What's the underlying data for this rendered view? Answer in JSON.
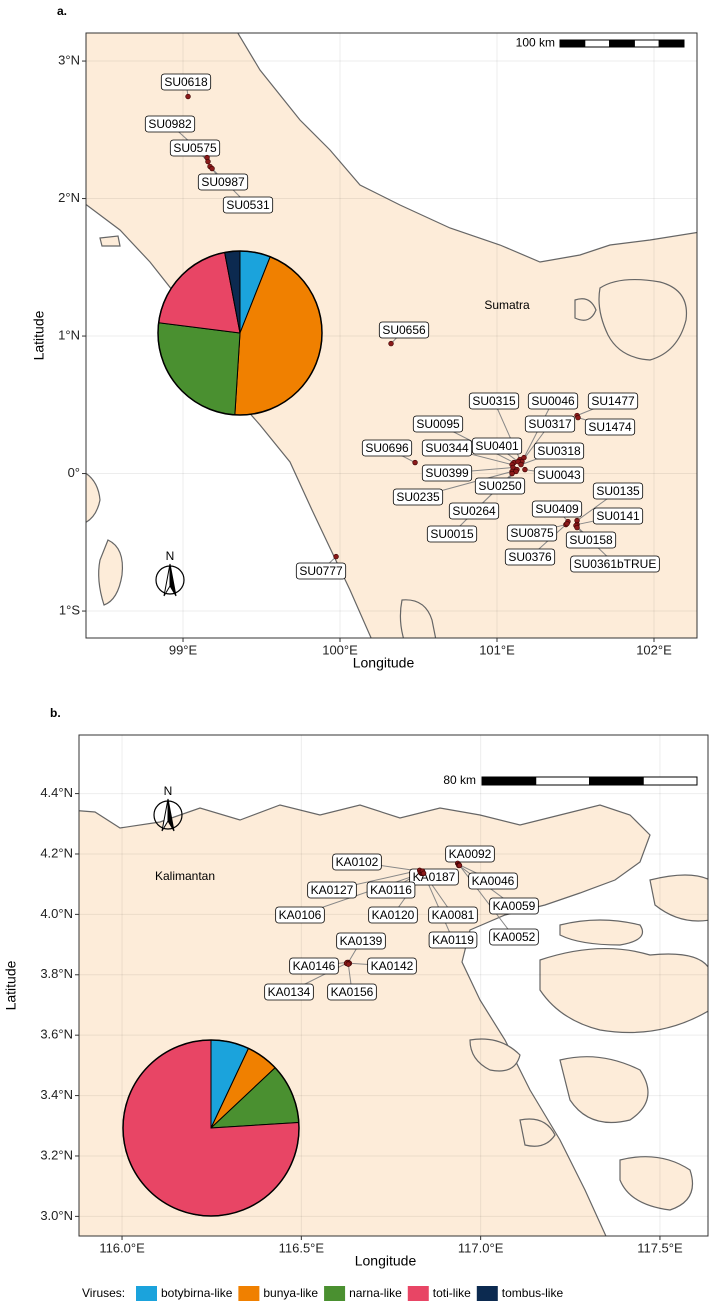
{
  "panels": [
    {
      "tag": "a.",
      "region": "Sumatra",
      "xlabel": "Longitude",
      "ylabel": "Latitude",
      "scale": "100 km",
      "north": "N",
      "xlim": [
        98.382,
        102.274
      ],
      "ylim": [
        -1.196,
        3.204
      ],
      "xticks": [
        {
          "value": 99,
          "label": "99°E"
        },
        {
          "value": 100,
          "label": "100°E"
        },
        {
          "value": 101,
          "label": "101°E"
        },
        {
          "value": 102,
          "label": "102°E"
        }
      ],
      "yticks": [
        {
          "value": 3,
          "label": "3°N"
        },
        {
          "value": 2,
          "label": "2°N"
        },
        {
          "value": 1,
          "label": "1°N"
        },
        {
          "value": 0,
          "label": "0°"
        },
        {
          "value": -1,
          "label": "1°S"
        }
      ],
      "samples": [
        {
          "label": "SU0618",
          "lon": 99.032,
          "lat": 2.742
        },
        {
          "label": "SU0982",
          "lon": 99.153,
          "lat": 2.298
        },
        {
          "label": "SU0575",
          "lon": 99.159,
          "lat": 2.269
        },
        {
          "label": "SU0987",
          "lon": 99.172,
          "lat": 2.233
        },
        {
          "label": "SU0531",
          "lon": 99.185,
          "lat": 2.218
        },
        {
          "label": "SU0656",
          "lon": 100.325,
          "lat": 0.945
        },
        {
          "label": "SU0777",
          "lon": 99.975,
          "lat": -0.604
        },
        {
          "label": "SU0315",
          "lon": 101.146,
          "lat": 0.102
        },
        {
          "label": "SU0046",
          "lon": 101.172,
          "lat": 0.116
        },
        {
          "label": "SU1477",
          "lon": 101.51,
          "lat": 0.422
        },
        {
          "label": "SU0095",
          "lon": 101.108,
          "lat": 0.08
        },
        {
          "label": "SU0317",
          "lon": 101.159,
          "lat": 0.087
        },
        {
          "label": "SU1474",
          "lon": 101.516,
          "lat": 0.407
        },
        {
          "label": "SU0696",
          "lon": 100.478,
          "lat": 0.08
        },
        {
          "label": "SU0344",
          "lon": 101.096,
          "lat": 0.065
        },
        {
          "label": "SU0401",
          "lon": 101.134,
          "lat": 0.087
        },
        {
          "label": "SU0318",
          "lon": 101.153,
          "lat": 0.065
        },
        {
          "label": "SU0399",
          "lon": 101.102,
          "lat": 0.044
        },
        {
          "label": "SU0043",
          "lon": 101.178,
          "lat": 0.029
        },
        {
          "label": "SU0235",
          "lon": 101.096,
          "lat": 0.015
        },
        {
          "label": "SU0250",
          "lon": 101.127,
          "lat": 0.029
        },
        {
          "label": "SU0135",
          "lon": 101.51,
          "lat": -0.342
        },
        {
          "label": "SU0264",
          "lon": 101.121,
          "lat": 0.015
        },
        {
          "label": "SU0409",
          "lon": 101.452,
          "lat": -0.349
        },
        {
          "label": "SU0141",
          "lon": 101.51,
          "lat": -0.371
        },
        {
          "label": "SU0015",
          "lon": 101.096,
          "lat": 0
        },
        {
          "label": "SU0875",
          "lon": 101.439,
          "lat": -0.371
        },
        {
          "label": "SU0158",
          "lon": 101.503,
          "lat": -0.378
        },
        {
          "label": "SU0376",
          "lon": 101.446,
          "lat": -0.364
        },
        {
          "label": "SU0361bTRUE",
          "lon": 101.51,
          "lat": -0.393
        }
      ],
      "pie": {
        "values": [
          6,
          45,
          26,
          20,
          3
        ]
      }
    },
    {
      "tag": "b.",
      "region": "Kalimantan",
      "xlabel": "Longitude",
      "ylabel": "Latitude",
      "scale": "80 km",
      "north": "N",
      "xlim": [
        115.88,
        117.634
      ],
      "ylim": [
        2.935,
        4.594
      ],
      "xticks": [
        {
          "value": 116.0,
          "label": "116.0°E"
        },
        {
          "value": 116.5,
          "label": "116.5°E"
        },
        {
          "value": 117.0,
          "label": "117.0°E"
        },
        {
          "value": 117.5,
          "label": "117.5°E"
        }
      ],
      "yticks": [
        {
          "value": 4.4,
          "label": "4.4°N"
        },
        {
          "value": 4.2,
          "label": "4.2°N"
        },
        {
          "value": 4.0,
          "label": "4.0°N"
        },
        {
          "value": 3.8,
          "label": "3.8°N"
        },
        {
          "value": 3.6,
          "label": "3.6°N"
        },
        {
          "value": 3.4,
          "label": "3.4°N"
        },
        {
          "value": 3.2,
          "label": "3.2°N"
        },
        {
          "value": 3.0,
          "label": "3.0°N"
        }
      ],
      "samples": [
        {
          "label": "KA0102",
          "lon": 116.832,
          "lat": 4.143
        },
        {
          "label": "KA0092",
          "lon": 116.936,
          "lat": 4.169
        },
        {
          "label": "KA0187",
          "lon": 116.835,
          "lat": 4.143
        },
        {
          "label": "KA0127",
          "lon": 116.83,
          "lat": 4.146
        },
        {
          "label": "KA0116",
          "lon": 116.832,
          "lat": 4.139
        },
        {
          "label": "KA0046",
          "lon": 116.939,
          "lat": 4.165
        },
        {
          "label": "KA0106",
          "lon": 116.835,
          "lat": 4.136
        },
        {
          "label": "KA0120",
          "lon": 116.838,
          "lat": 4.136
        },
        {
          "label": "KA0081",
          "lon": 116.838,
          "lat": 4.143
        },
        {
          "label": "KA0059",
          "lon": 116.939,
          "lat": 4.162
        },
        {
          "label": "KA0119",
          "lon": 116.841,
          "lat": 4.136
        },
        {
          "label": "KA0052",
          "lon": 116.941,
          "lat": 4.162
        },
        {
          "label": "KA0139",
          "lon": 116.631,
          "lat": 3.841
        },
        {
          "label": "KA0146",
          "lon": 116.628,
          "lat": 3.841
        },
        {
          "label": "KA0142",
          "lon": 116.634,
          "lat": 3.838
        },
        {
          "label": "KA0134",
          "lon": 116.626,
          "lat": 3.838
        },
        {
          "label": "KA0156",
          "lon": 116.631,
          "lat": 3.835
        }
      ],
      "pie": {
        "values": [
          7,
          6,
          11,
          76,
          0
        ]
      }
    }
  ],
  "legend": {
    "title": "Viruses:",
    "names": [
      "botybirna-like",
      "bunya-like",
      "narna-like",
      "toti-like",
      "tombus-like"
    ],
    "colors": [
      "#1ba3dc",
      "#f08000",
      "#4a9030",
      "#e84565",
      "#0c2a50"
    ]
  }
}
